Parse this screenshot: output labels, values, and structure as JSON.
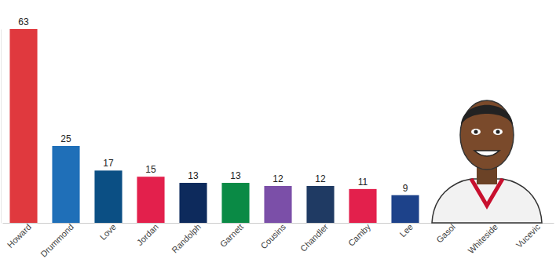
{
  "chart_data": {
    "type": "bar",
    "categories": [
      "Howard",
      "Drummond",
      "Love",
      "Jordan",
      "Randolph",
      "Garnett",
      "Cousins",
      "Chandler",
      "Camby",
      "Lee",
      "Gasol",
      "Whiteside",
      "Vucevic"
    ],
    "values": [
      63,
      25,
      17,
      15,
      13,
      13,
      12,
      12,
      11,
      9,
      null,
      null,
      null
    ],
    "colors": [
      "#e0393e",
      "#1f6fb8",
      "#0b4f84",
      "#e3204c",
      "#0d2a5c",
      "#0a8a45",
      "#7b4fa8",
      "#1f3a63",
      "#e3204c",
      "#1d428a",
      "#5d76a9",
      "#98002e",
      "#0077c0"
    ],
    "ylim": [
      0,
      63
    ],
    "data_labels": true,
    "tick_labels": "x",
    "grid": false
  }
}
